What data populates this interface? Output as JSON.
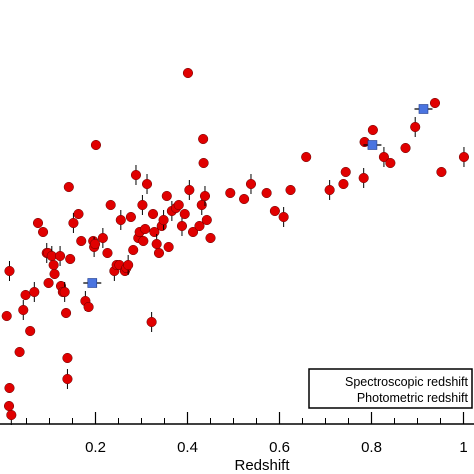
{
  "chart_data": {
    "type": "scatter",
    "title": "",
    "xlabel": "Redshift",
    "ylabel": "",
    "xlim": [
      0.0,
      1.0
    ],
    "xticks": [
      {
        "value": 0.2,
        "label": "0.2"
      },
      {
        "value": 0.4,
        "label": "0.4"
      },
      {
        "value": 0.6,
        "label": "0.6"
      },
      {
        "value": 0.8,
        "label": "0.8"
      },
      {
        "value": 1.0,
        "label": "1"
      }
    ],
    "y_tick_labels_visible": false,
    "grid": false,
    "legend": {
      "placement": "bottom-right",
      "entries": [
        "Spectroscopic redshift",
        "Photometric redshift"
      ]
    },
    "series": [
      {
        "name": "Spectroscopic redshift",
        "color": "#e00000",
        "marker": "circle",
        "points": [
          [
            0.013,
            0.51
          ],
          [
            0.007,
            0.36
          ],
          [
            0.013,
            0.12
          ],
          [
            0.017,
            0.03
          ],
          [
            0.012,
            0.06
          ],
          [
            0.035,
            0.24
          ],
          [
            0.043,
            0.38
          ],
          [
            0.048,
            0.43
          ],
          [
            0.058,
            0.31
          ],
          [
            0.067,
            0.44
          ],
          [
            0.075,
            0.67
          ],
          [
            0.086,
            0.64
          ],
          [
            0.094,
            0.57
          ],
          [
            0.098,
            0.47
          ],
          [
            0.097,
            0.57
          ],
          [
            0.105,
            0.56
          ],
          [
            0.109,
            0.53
          ],
          [
            0.111,
            0.5
          ],
          [
            0.123,
            0.56
          ],
          [
            0.125,
            0.46
          ],
          [
            0.129,
            0.44
          ],
          [
            0.133,
            0.44
          ],
          [
            0.136,
            0.37
          ],
          [
            0.139,
            0.22
          ],
          [
            0.139,
            0.15
          ],
          [
            0.142,
            0.79
          ],
          [
            0.145,
            0.55
          ],
          [
            0.152,
            0.67
          ],
          [
            0.163,
            0.7
          ],
          [
            0.169,
            0.61
          ],
          [
            0.178,
            0.41
          ],
          [
            0.185,
            0.39
          ],
          [
            0.195,
            0.61
          ],
          [
            0.197,
            0.59
          ],
          [
            0.199,
            0.6
          ],
          [
            0.201,
            0.93
          ],
          [
            0.216,
            0.62
          ],
          [
            0.226,
            0.57
          ],
          [
            0.233,
            0.73
          ],
          [
            0.241,
            0.51
          ],
          [
            0.246,
            0.53
          ],
          [
            0.252,
            0.53
          ],
          [
            0.255,
            0.68
          ],
          [
            0.264,
            0.51
          ],
          [
            0.267,
            0.52
          ],
          [
            0.271,
            0.53
          ],
          [
            0.277,
            0.69
          ],
          [
            0.282,
            0.58
          ],
          [
            0.288,
            0.83
          ],
          [
            0.293,
            0.62
          ],
          [
            0.296,
            0.64
          ],
          [
            0.302,
            0.73
          ],
          [
            0.304,
            0.61
          ],
          [
            0.308,
            0.65
          ],
          [
            0.312,
            0.8
          ],
          [
            0.325,
            0.7
          ],
          [
            0.328,
            0.64
          ],
          [
            0.333,
            0.6
          ],
          [
            0.338,
            0.57
          ],
          [
            0.344,
            0.66
          ],
          [
            0.348,
            0.68
          ],
          [
            0.355,
            0.76
          ],
          [
            0.359,
            0.59
          ],
          [
            0.366,
            0.71
          ],
          [
            0.375,
            0.72
          ],
          [
            0.381,
            0.73
          ],
          [
            0.388,
            0.66
          ],
          [
            0.394,
            0.7
          ],
          [
            0.401,
            1.17
          ],
          [
            0.404,
            0.78
          ],
          [
            0.412,
            0.64
          ],
          [
            0.426,
            0.66
          ],
          [
            0.431,
            0.73
          ],
          [
            0.434,
            0.95
          ],
          [
            0.435,
            0.87
          ],
          [
            0.438,
            0.76
          ],
          [
            0.442,
            0.68
          ],
          [
            0.45,
            0.62
          ],
          [
            0.322,
            0.34
          ],
          [
            0.493,
            0.77
          ],
          [
            0.523,
            0.75
          ],
          [
            0.538,
            0.8
          ],
          [
            0.572,
            0.77
          ],
          [
            0.59,
            0.71
          ],
          [
            0.609,
            0.69
          ],
          [
            0.624,
            0.78
          ],
          [
            0.658,
            0.89
          ],
          [
            0.709,
            0.78
          ],
          [
            0.739,
            0.8
          ],
          [
            0.744,
            0.84
          ],
          [
            0.783,
            0.82
          ],
          [
            0.785,
            0.94
          ],
          [
            0.803,
            0.98
          ],
          [
            0.827,
            0.89
          ],
          [
            0.841,
            0.87
          ],
          [
            0.874,
            0.92
          ],
          [
            0.895,
            0.99
          ],
          [
            0.938,
            1.07
          ],
          [
            0.952,
            0.84
          ],
          [
            1.001,
            0.89
          ]
        ]
      },
      {
        "name": "Photometric redshift",
        "color": "#4a74e0",
        "marker": "square",
        "points": [
          [
            0.193,
            0.47
          ],
          [
            0.802,
            0.93
          ],
          [
            0.913,
            1.05
          ]
        ]
      }
    ]
  }
}
